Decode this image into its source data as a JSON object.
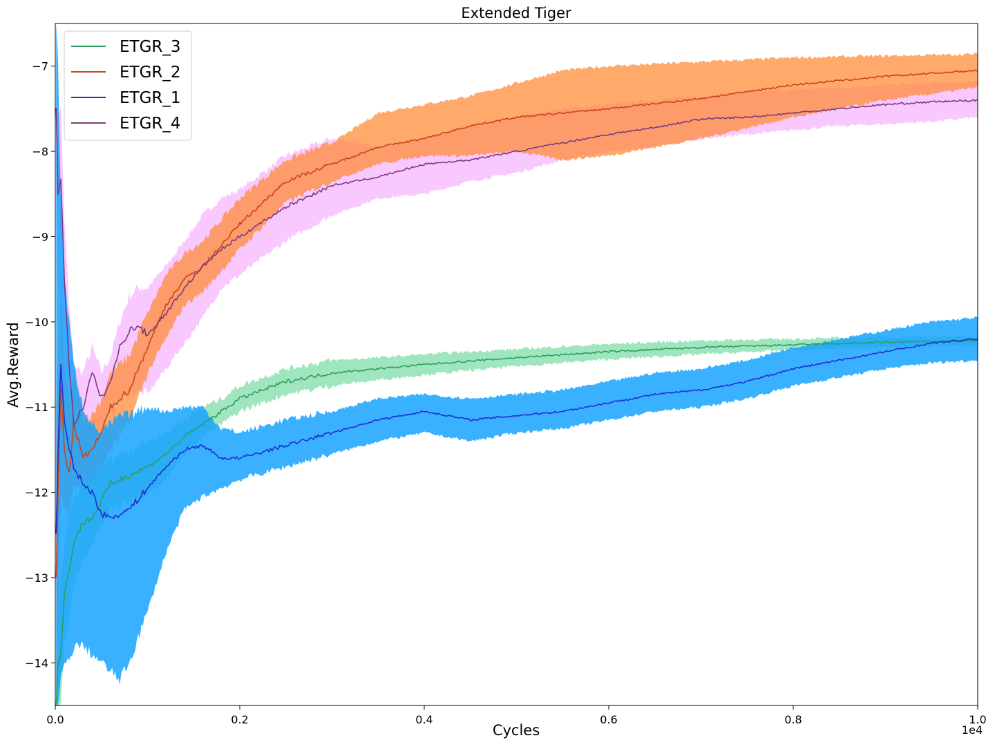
{
  "chart_data": {
    "type": "line",
    "title": "Extended Tiger",
    "xlabel": "Cycles",
    "ylabel": "Avg.Reward",
    "x_offset_label": "1e4",
    "xlim": [
      0,
      1.0
    ],
    "ylim": [
      -14.5,
      -6.5
    ],
    "x_ticks": [
      0.0,
      0.2,
      0.4,
      0.6,
      0.8,
      1.0
    ],
    "x_tick_labels": [
      "0.0",
      "0.2",
      "0.4",
      "0.6",
      "0.8",
      "1.0"
    ],
    "y_ticks": [
      -14,
      -13,
      -12,
      -11,
      -10,
      -9,
      -8,
      -7
    ],
    "y_tick_labels": [
      "−14",
      "−13",
      "−12",
      "−11",
      "−10",
      "−9",
      "−8",
      "−7"
    ],
    "grid": false,
    "legend_position": "top-left",
    "series": [
      {
        "name": "ETGR_3",
        "color": "#2e9e5e",
        "band_color": "#7fdca8",
        "x": [
          0.001,
          0.003,
          0.006,
          0.01,
          0.015,
          0.02,
          0.03,
          0.04,
          0.05,
          0.06,
          0.08,
          0.1,
          0.12,
          0.14,
          0.16,
          0.18,
          0.2,
          0.25,
          0.3,
          0.35,
          0.4,
          0.5,
          0.6,
          0.7,
          0.8,
          0.9,
          1.0
        ],
        "y": [
          -14.5,
          -14.0,
          -13.9,
          -13.2,
          -12.9,
          -12.6,
          -12.35,
          -12.3,
          -12.1,
          -11.9,
          -11.8,
          -11.7,
          -11.55,
          -11.35,
          -11.2,
          -11.05,
          -10.9,
          -10.7,
          -10.6,
          -10.55,
          -10.5,
          -10.42,
          -10.35,
          -10.3,
          -10.27,
          -10.24,
          -10.22
        ],
        "lower": [
          -14.5,
          -14.5,
          -14.5,
          -13.8,
          -13.5,
          -13.1,
          -12.8,
          -12.6,
          -12.4,
          -12.2,
          -12.1,
          -12.0,
          -11.85,
          -11.55,
          -11.35,
          -11.2,
          -11.05,
          -10.85,
          -10.75,
          -10.68,
          -10.62,
          -10.52,
          -10.44,
          -10.38,
          -10.33,
          -10.3,
          -10.27
        ],
        "upper": [
          -13.5,
          -13.3,
          -13.0,
          -12.6,
          -12.3,
          -12.1,
          -11.9,
          -11.8,
          -11.7,
          -11.6,
          -11.5,
          -11.4,
          -11.3,
          -11.15,
          -11.0,
          -10.9,
          -10.75,
          -10.55,
          -10.45,
          -10.42,
          -10.38,
          -10.32,
          -10.26,
          -10.22,
          -10.2,
          -10.18,
          -10.17
        ]
      },
      {
        "name": "ETGR_2",
        "color": "#c9441c",
        "band_color": "#ff8c3a",
        "x": [
          0.001,
          0.003,
          0.006,
          0.01,
          0.015,
          0.02,
          0.03,
          0.04,
          0.05,
          0.06,
          0.08,
          0.1,
          0.12,
          0.14,
          0.16,
          0.18,
          0.2,
          0.25,
          0.3,
          0.35,
          0.4,
          0.45,
          0.5,
          0.55,
          0.6,
          0.7,
          0.8,
          0.9,
          1.0
        ],
        "y": [
          -13.0,
          -12.0,
          -10.8,
          -11.5,
          -11.8,
          -11.2,
          -11.6,
          -11.5,
          -11.3,
          -11.0,
          -10.8,
          -10.3,
          -9.8,
          -9.5,
          -9.35,
          -9.1,
          -8.85,
          -8.35,
          -8.15,
          -7.95,
          -7.85,
          -7.7,
          -7.6,
          -7.55,
          -7.5,
          -7.38,
          -7.22,
          -7.12,
          -7.05
        ],
        "lower": [
          -14.5,
          -13.5,
          -12.0,
          -12.2,
          -12.2,
          -11.9,
          -12.0,
          -11.9,
          -11.7,
          -11.5,
          -11.2,
          -10.6,
          -10.2,
          -9.8,
          -9.65,
          -9.4,
          -9.15,
          -8.6,
          -8.35,
          -8.15,
          -8.05,
          -8.05,
          -8.0,
          -8.1,
          -8.05,
          -7.85,
          -7.6,
          -7.4,
          -7.25
        ],
        "upper": [
          -11.0,
          -10.5,
          -9.6,
          -10.5,
          -11.0,
          -10.6,
          -11.1,
          -11.1,
          -10.9,
          -10.6,
          -10.4,
          -9.9,
          -9.45,
          -9.2,
          -9.05,
          -8.8,
          -8.55,
          -8.1,
          -7.9,
          -7.55,
          -7.45,
          -7.35,
          -7.2,
          -7.05,
          -7.0,
          -6.95,
          -6.9,
          -6.88,
          -6.86
        ]
      },
      {
        "name": "ETGR_1",
        "color": "#1f2ed0",
        "band_color": "#16a3ff",
        "x": [
          0.001,
          0.003,
          0.006,
          0.01,
          0.015,
          0.02,
          0.03,
          0.04,
          0.05,
          0.06,
          0.07,
          0.08,
          0.1,
          0.12,
          0.14,
          0.16,
          0.18,
          0.2,
          0.25,
          0.3,
          0.35,
          0.4,
          0.45,
          0.5,
          0.55,
          0.6,
          0.65,
          0.7,
          0.75,
          0.8,
          0.85,
          0.9,
          0.95,
          1.0
        ],
        "y": [
          -12.5,
          -11.5,
          -10.5,
          -11.2,
          -11.5,
          -11.7,
          -11.9,
          -12.0,
          -12.25,
          -12.3,
          -12.25,
          -12.2,
          -11.95,
          -11.7,
          -11.5,
          -11.45,
          -11.6,
          -11.6,
          -11.45,
          -11.3,
          -11.15,
          -11.05,
          -11.15,
          -11.1,
          -11.05,
          -10.95,
          -10.85,
          -10.8,
          -10.7,
          -10.55,
          -10.45,
          -10.35,
          -10.25,
          -10.2
        ],
        "lower": [
          -14.5,
          -14.5,
          -14.2,
          -14.0,
          -14.0,
          -13.8,
          -13.8,
          -13.9,
          -14.0,
          -14.1,
          -14.2,
          -14.0,
          -13.4,
          -12.7,
          -12.2,
          -12.05,
          -11.95,
          -11.85,
          -11.7,
          -11.55,
          -11.4,
          -11.3,
          -11.4,
          -11.3,
          -11.25,
          -11.15,
          -11.05,
          -11.0,
          -10.9,
          -10.75,
          -10.65,
          -10.55,
          -10.48,
          -10.45
        ],
        "upper": [
          -6.5,
          -7.0,
          -8.5,
          -9.5,
          -10.0,
          -10.5,
          -11.0,
          -11.2,
          -11.3,
          -11.2,
          -11.1,
          -11.1,
          -11.0,
          -11.05,
          -11.0,
          -11.0,
          -11.25,
          -11.3,
          -11.15,
          -11.05,
          -10.9,
          -10.85,
          -10.9,
          -10.85,
          -10.8,
          -10.7,
          -10.6,
          -10.55,
          -10.45,
          -10.3,
          -10.2,
          -10.1,
          -10.0,
          -9.95
        ]
      },
      {
        "name": "ETGR_4",
        "color": "#7a3b7e",
        "band_color": "#f5b0ff",
        "x": [
          0.001,
          0.003,
          0.006,
          0.01,
          0.015,
          0.02,
          0.03,
          0.04,
          0.05,
          0.06,
          0.07,
          0.08,
          0.09,
          0.1,
          0.12,
          0.14,
          0.16,
          0.18,
          0.2,
          0.25,
          0.3,
          0.35,
          0.4,
          0.45,
          0.5,
          0.55,
          0.6,
          0.65,
          0.7,
          0.75,
          0.8,
          0.85,
          0.9,
          0.95,
          1.0
        ],
        "y": [
          -7.5,
          -8.5,
          -8.3,
          -9.5,
          -10.5,
          -11.2,
          -11.0,
          -10.6,
          -10.9,
          -10.7,
          -10.3,
          -10.1,
          -10.05,
          -10.15,
          -9.9,
          -9.6,
          -9.35,
          -9.15,
          -9.0,
          -8.65,
          -8.4,
          -8.3,
          -8.15,
          -8.1,
          -8.0,
          -7.9,
          -7.8,
          -7.72,
          -7.62,
          -7.6,
          -7.55,
          -7.5,
          -7.45,
          -7.42,
          -7.4
        ],
        "lower": [
          -8.5,
          -9.5,
          -9.8,
          -10.5,
          -11.5,
          -11.8,
          -11.6,
          -11.3,
          -11.3,
          -11.1,
          -10.9,
          -10.85,
          -10.8,
          -10.85,
          -10.55,
          -10.25,
          -9.95,
          -9.6,
          -9.45,
          -9.05,
          -8.75,
          -8.55,
          -8.5,
          -8.35,
          -8.25,
          -8.1,
          -8.0,
          -7.95,
          -7.85,
          -7.8,
          -7.75,
          -7.7,
          -7.68,
          -7.65,
          -7.6
        ],
        "upper": [
          -6.8,
          -7.5,
          -7.5,
          -8.8,
          -9.8,
          -10.5,
          -10.6,
          -10.3,
          -10.6,
          -10.4,
          -10.0,
          -9.7,
          -9.6,
          -9.6,
          -9.35,
          -9.05,
          -8.75,
          -8.55,
          -8.45,
          -8.05,
          -7.85,
          -7.95,
          -7.85,
          -7.7,
          -7.6,
          -7.5,
          -7.45,
          -7.4,
          -7.35,
          -7.3,
          -7.28,
          -7.25,
          -7.22,
          -7.2,
          -7.18
        ]
      }
    ]
  }
}
